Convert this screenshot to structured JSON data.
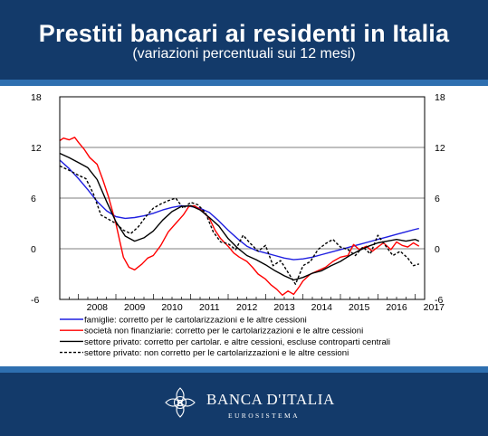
{
  "header": {
    "title": "Prestiti bancari ai residenti in Italia",
    "subtitle": "(variazioni percentuali sui 12 mesi)"
  },
  "footer": {
    "brand": "BANCA D'ITALIA",
    "sub": "EUROSISTEMA"
  },
  "colors": {
    "header_bg": "#133a6a",
    "band": "#2e6fb0",
    "famiglie": "#1f1fe0",
    "societa": "#ff0000",
    "privato": "#000000"
  },
  "chart_data": {
    "type": "line",
    "title": "",
    "xlabel": "",
    "ylabel": "",
    "ylim": [
      -6,
      18
    ],
    "xlim": [
      2007.5,
      2017.25
    ],
    "y_ticks": [
      -6,
      0,
      6,
      12,
      18
    ],
    "x_tick_labels": [
      "2008",
      "2009",
      "2010",
      "2011",
      "2012",
      "2013",
      "2014",
      "2015",
      "2016",
      "2017"
    ],
    "grid": "horizontal",
    "legend_position": "bottom",
    "series": [
      {
        "name": "famiglie: corretto per le cartolarizzazioni e le altre cessioni",
        "color": "#1f1fe0",
        "dash": "solid",
        "x": [
          2007.5,
          2007.75,
          2008.0,
          2008.25,
          2008.5,
          2008.75,
          2009.0,
          2009.25,
          2009.5,
          2009.75,
          2010.0,
          2010.25,
          2010.5,
          2010.75,
          2011.0,
          2011.25,
          2011.5,
          2011.75,
          2012.0,
          2012.25,
          2012.5,
          2012.75,
          2013.0,
          2013.25,
          2013.5,
          2013.75,
          2014.0,
          2014.25,
          2014.5,
          2014.75,
          2015.0,
          2015.25,
          2015.5,
          2015.75,
          2016.0,
          2016.25,
          2016.5,
          2016.75,
          2017.0,
          2017.1
        ],
        "y": [
          10.5,
          9.5,
          8.3,
          7.0,
          5.6,
          4.5,
          3.8,
          3.6,
          3.7,
          3.9,
          4.2,
          4.6,
          4.9,
          5.1,
          5.0,
          4.8,
          4.3,
          3.3,
          2.2,
          1.2,
          0.3,
          -0.2,
          -0.5,
          -0.8,
          -1.1,
          -1.3,
          -1.2,
          -1.0,
          -0.7,
          -0.4,
          -0.1,
          0.2,
          0.5,
          0.8,
          1.1,
          1.4,
          1.7,
          2.0,
          2.3,
          2.4
        ]
      },
      {
        "name": "società non finanziarie: corretto per le cartolarizzazioni e le altre cessioni",
        "color": "#ff0000",
        "dash": "solid",
        "x": [
          2007.5,
          2007.6,
          2007.75,
          2007.9,
          2008.0,
          2008.15,
          2008.3,
          2008.5,
          2008.65,
          2008.8,
          2009.0,
          2009.1,
          2009.2,
          2009.35,
          2009.5,
          2009.7,
          2009.85,
          2010.0,
          2010.2,
          2010.4,
          2010.6,
          2010.8,
          2010.95,
          2011.1,
          2011.3,
          2011.5,
          2011.65,
          2011.8,
          2012.0,
          2012.15,
          2012.3,
          2012.5,
          2012.65,
          2012.8,
          2013.0,
          2013.15,
          2013.3,
          2013.45,
          2013.6,
          2013.75,
          2013.9,
          2014.0,
          2014.2,
          2014.4,
          2014.6,
          2014.8,
          2015.0,
          2015.2,
          2015.35,
          2015.5,
          2015.7,
          2015.85,
          2016.0,
          2016.15,
          2016.35,
          2016.5,
          2016.65,
          2016.8,
          2016.95,
          2017.1
        ],
        "y": [
          12.8,
          13.1,
          12.9,
          13.2,
          12.6,
          11.8,
          10.8,
          10.0,
          8.2,
          6.2,
          3.0,
          1.0,
          -1.0,
          -2.2,
          -2.5,
          -1.8,
          -1.1,
          -0.8,
          0.4,
          2.0,
          3.0,
          4.0,
          5.0,
          5.1,
          4.5,
          3.6,
          2.2,
          1.2,
          0.3,
          -0.5,
          -1.0,
          -1.5,
          -2.2,
          -3.0,
          -3.6,
          -4.3,
          -4.8,
          -5.5,
          -5.0,
          -5.4,
          -4.5,
          -3.8,
          -3.0,
          -2.6,
          -2.2,
          -1.5,
          -1.0,
          -0.8,
          0.5,
          -0.1,
          0.3,
          -0.3,
          0.2,
          0.7,
          -0.1,
          0.8,
          0.4,
          0.2,
          0.7,
          0.3
        ]
      },
      {
        "name": "settore privato: corretto per cartolar. e altre cessioni, escluse controparti centrali",
        "color": "#000000",
        "dash": "solid",
        "x": [
          2007.5,
          2007.75,
          2008.0,
          2008.25,
          2008.5,
          2008.75,
          2009.0,
          2009.25,
          2009.5,
          2009.75,
          2010.0,
          2010.25,
          2010.5,
          2010.75,
          2011.0,
          2011.25,
          2011.5,
          2011.75,
          2012.0,
          2012.25,
          2012.5,
          2012.75,
          2013.0,
          2013.25,
          2013.5,
          2013.75,
          2014.0,
          2014.25,
          2014.5,
          2014.75,
          2015.0,
          2015.25,
          2015.5,
          2015.75,
          2016.0,
          2016.25,
          2016.5,
          2016.75,
          2017.0,
          2017.1
        ],
        "y": [
          11.3,
          10.8,
          10.2,
          9.6,
          8.2,
          5.6,
          3.2,
          1.5,
          0.9,
          1.3,
          2.1,
          3.4,
          4.4,
          5.0,
          5.1,
          4.6,
          3.7,
          2.7,
          1.2,
          0.1,
          -0.8,
          -1.3,
          -1.9,
          -2.6,
          -3.2,
          -3.7,
          -3.4,
          -2.9,
          -2.6,
          -2.0,
          -1.5,
          -0.8,
          -0.2,
          0.3,
          0.7,
          0.9,
          1.1,
          0.9,
          1.1,
          0.9
        ]
      },
      {
        "name": "settore privato: non corretto per le cartolarizzazioni e le altre cessioni",
        "color": "#000000",
        "dash": "dashed",
        "x": [
          2007.5,
          2007.75,
          2008.0,
          2008.2,
          2008.4,
          2008.6,
          2008.8,
          2009.0,
          2009.2,
          2009.4,
          2009.6,
          2009.8,
          2010.0,
          2010.2,
          2010.4,
          2010.6,
          2010.8,
          2011.0,
          2011.2,
          2011.4,
          2011.6,
          2011.8,
          2012.0,
          2012.2,
          2012.4,
          2012.6,
          2012.8,
          2013.0,
          2013.2,
          2013.4,
          2013.6,
          2013.8,
          2014.0,
          2014.2,
          2014.4,
          2014.6,
          2014.8,
          2015.0,
          2015.2,
          2015.4,
          2015.6,
          2015.8,
          2016.0,
          2016.2,
          2016.4,
          2016.6,
          2016.8,
          2016.95,
          2017.1
        ],
        "y": [
          9.8,
          9.3,
          8.7,
          8.3,
          6.5,
          4.0,
          3.5,
          3.0,
          2.2,
          1.8,
          2.6,
          3.8,
          4.8,
          5.3,
          5.7,
          6.0,
          4.8,
          5.5,
          5.2,
          4.2,
          2.0,
          0.8,
          0.6,
          -0.1,
          1.6,
          0.6,
          -0.3,
          0.4,
          -2.0,
          -1.4,
          -2.8,
          -4.2,
          -2.0,
          -1.5,
          -0.1,
          0.6,
          1.1,
          0.2,
          -0.1,
          -0.8,
          0.2,
          -0.6,
          1.6,
          0.4,
          -0.8,
          -0.3,
          -1.1,
          -2.0,
          -1.8
        ]
      }
    ]
  }
}
